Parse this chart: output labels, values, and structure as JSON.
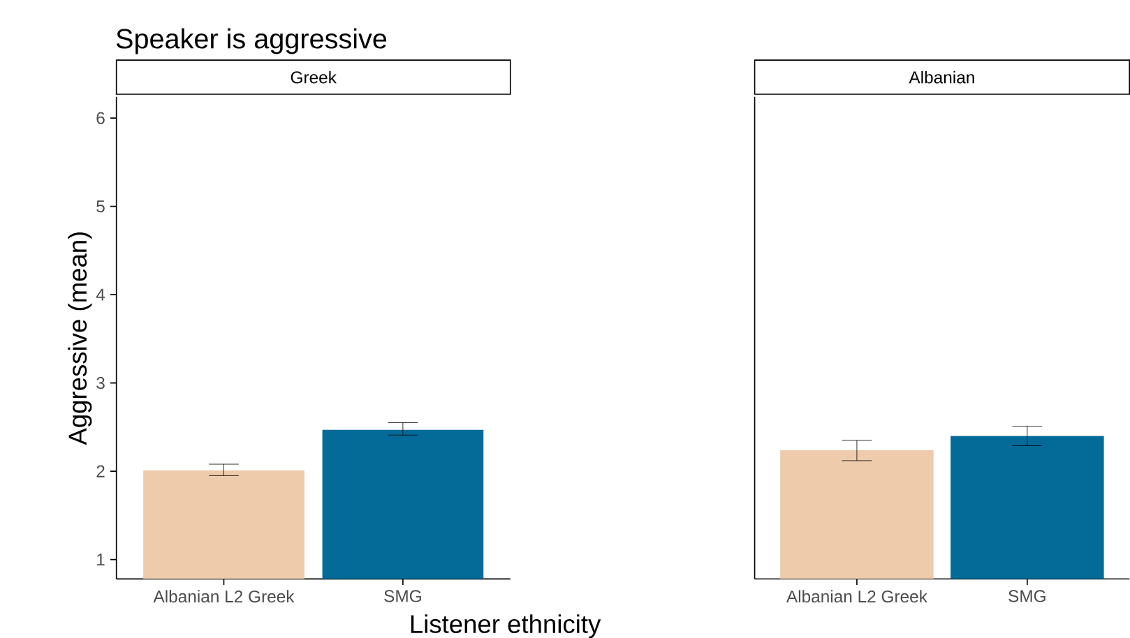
{
  "chart_data": [
    {
      "type": "bar",
      "title": "Speaker is aggressive",
      "subtitle": "Greek",
      "xlabel": "Listener ethnicity",
      "ylabel": "Aggressive (mean)",
      "categories": [
        "Albanian L2 Greek",
        "SMG"
      ],
      "values": [
        2.01,
        2.47
      ],
      "colors": [
        "#edcbab",
        "#046b99"
      ],
      "errors": [
        [
          1.95,
          2.08
        ],
        [
          2.41,
          2.55
        ]
      ],
      "ylim": [
        0.78,
        6.24
      ],
      "yticks": [
        1,
        2,
        3,
        4,
        5,
        6
      ]
    },
    {
      "type": "bar",
      "subtitle": "Albanian",
      "categories": [
        "Albanian L2 Greek",
        "SMG"
      ],
      "values": [
        2.24,
        2.4
      ],
      "colors": [
        "#edcbab",
        "#046b99"
      ],
      "errors": [
        [
          2.12,
          2.35
        ],
        [
          2.29,
          2.51
        ]
      ],
      "ylim": [
        0.78,
        6.24
      ],
      "yticks": [
        1,
        2,
        3,
        4,
        5,
        6
      ],
      "tick_labels": "x"
    }
  ]
}
